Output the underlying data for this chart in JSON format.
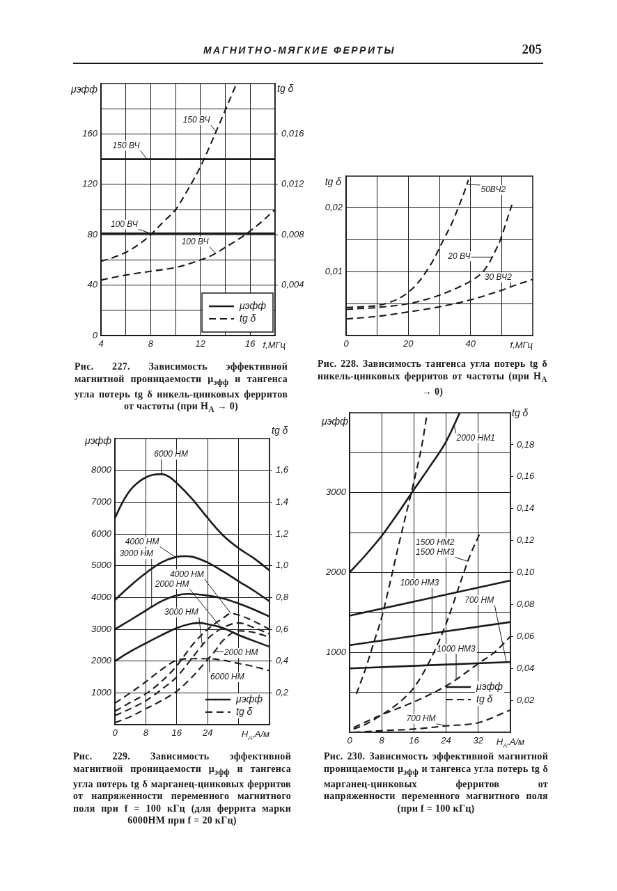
{
  "chart_data": [
    {
      "type": "line",
      "title": "Рис. 227. Зависимость эффективной магнитной проницаемости μ$_{эфф}$ и тангенса угла потерь tg δ никель-цинковых ферритов от частоты (при H$_{A}$ → 0)",
      "xlabel": "f,МГц",
      "ylabel": "μэфф",
      "y2label": "tg δ",
      "xlim": [
        4,
        18
      ],
      "xticks": [
        4,
        {
          "value": 6,
          "label": null
        },
        8,
        {
          "value": 10,
          "label": null
        },
        12,
        {
          "value": 14,
          "label": null
        },
        16
      ],
      "ylim": [
        0,
        200
      ],
      "yticks": [
        0,
        {
          "value": 20,
          "label": null
        },
        40,
        {
          "value": 60,
          "label": null
        },
        80,
        {
          "value": 100,
          "label": null
        },
        120,
        160,
        {
          "value": 180,
          "label": null
        }
      ],
      "y2lim": [
        0,
        0.02
      ],
      "y2ticks": [
        {
          "value": 0.004,
          "label": "0,004"
        },
        {
          "value": 0.008,
          "label": "0,008"
        },
        {
          "value": 0.012,
          "label": "0,012"
        },
        {
          "value": 0.016,
          "label": "0,016"
        }
      ],
      "grid": true,
      "legend": "bottom right",
      "marker": "none",
      "series": [
        {
          "name": "μэфф",
          "color": "#1a1a1a",
          "line_style": "solid",
          "x": [
            4,
            18
          ],
          "values": [
            140,
            140
          ]
        },
        {
          "color": "#1a1a1a",
          "line_style": "solid",
          "x": [
            4,
            18
          ],
          "values": [
            81,
            81
          ]
        },
        {
          "name": "tg δ",
          "color": "#1a1a1a",
          "line_style": "dashed",
          "axis": "y2",
          "x": [
            4,
            5,
            6,
            7,
            8,
            9,
            10,
            11,
            12,
            13,
            14,
            14.9
          ],
          "values": [
            0.0059,
            0.0062,
            0.0066,
            0.0072,
            0.008,
            0.009,
            0.01,
            0.0116,
            0.0134,
            0.0156,
            0.0179,
            0.02
          ]
        },
        {
          "color": "#1a1a1a",
          "line_style": "dashed",
          "axis": "y2",
          "x": [
            4,
            6,
            8,
            10,
            12,
            13,
            14,
            15,
            16,
            17,
            18
          ],
          "values": [
            0.0044,
            0.0048,
            0.0051,
            0.0054,
            0.006,
            0.0064,
            0.007,
            0.0076,
            0.0083,
            0.0091,
            0.01
          ]
        }
      ],
      "annotations": [
        "МАГНИТНО-МЯГКИЕ ФЕРРИТЫ",
        "205",
        {
          "text": "150 ВЧ",
          "x": 7.7,
          "y": 140
        },
        {
          "text": "150 ВЧ",
          "x": 13.25,
          "y": 162
        },
        {
          "text": "100 ВЧ",
          "x": 8,
          "y": 81
        },
        {
          "text": "100 ВЧ",
          "x": 13.25,
          "y": 65
        }
      ]
    },
    {
      "type": "line",
      "title": "Рис. 228. Зависимость тангенса угла потерь tg δ никель-цинковых ферритов от частоты (при H$_{A}$ → 0)",
      "xlabel": "f,МГц",
      "ylabel": "tg δ",
      "xlim": [
        0,
        60
      ],
      "xticks": [
        0,
        {
          "value": 10,
          "label": null
        },
        20,
        {
          "value": 30,
          "label": null
        },
        40,
        {
          "value": 50,
          "label": null
        }
      ],
      "ylim": [
        0,
        0.025
      ],
      "yticks": [
        {
          "value": 0.005,
          "label": null
        },
        {
          "value": 0.01,
          "label": "0,01"
        },
        {
          "value": 0.015,
          "label": null
        },
        {
          "value": 0.02,
          "label": "0,02"
        }
      ],
      "grid": true,
      "marker": "none",
      "line_style": "dashed",
      "series": [
        {
          "color": "#1a1a1a",
          "x": [
            0,
            5,
            10,
            14,
            18,
            21,
            24,
            25.7,
            28,
            31.3,
            34,
            36,
            38,
            39.3
          ],
          "values": [
            0.0044,
            0.0045,
            0.0047,
            0.0052,
            0.0061,
            0.0072,
            0.0088,
            0.01,
            0.0118,
            0.015,
            0.0176,
            0.02,
            0.0225,
            0.0244
          ]
        },
        {
          "color": "#1a1a1a",
          "x": [
            0,
            10,
            20,
            28,
            34,
            38,
            41,
            44,
            46,
            48,
            49.6,
            51.5,
            53.3
          ],
          "values": [
            0.0041,
            0.0044,
            0.005,
            0.006,
            0.0071,
            0.008,
            0.0088,
            0.01,
            0.0114,
            0.0133,
            0.015,
            0.0178,
            0.0205
          ]
        },
        {
          "color": "#1a1a1a",
          "x": [
            0,
            10,
            20,
            30,
            40,
            50,
            55,
            60
          ],
          "values": [
            0.0026,
            0.003,
            0.0037,
            0.0045,
            0.0056,
            0.0071,
            0.008,
            0.0088
          ]
        }
      ],
      "annotations": [
        {
          "text": "50ВЧ2",
          "x": 38.8,
          "y": 0.0237
        },
        {
          "text": "20 ВЧ",
          "x": 46.9,
          "y": 0.0123
        },
        {
          "text": "30 ВЧ2",
          "x": 52.9,
          "y": 0.0076
        }
      ]
    },
    {
      "type": "line",
      "title": "Рис. 229. Зависимость эффективной магнитной проницаемости μ$_{эфф}$ и тангенса угла потерь tg δ марганец-цинковых ферритов от напряженности переменного магнитного поля при f = 100 кГц (для феррита марки 6000НМ при f = 20 кГц)",
      "xlabel": "H$_{A}$,А/м",
      "ylabel": "μэфф",
      "y2label": "tg δ",
      "xlim": [
        0,
        40
      ],
      "xticks": [
        0,
        8,
        16,
        24,
        {
          "value": 32,
          "label": null
        }
      ],
      "ylim": [
        0,
        9000
      ],
      "yticks": [
        1000,
        2000,
        3000,
        4000,
        5000,
        6000,
        7000,
        8000
      ],
      "y2lim": [
        0,
        1.8
      ],
      "y2ticks": [
        {
          "value": 0.2,
          "label": "0,2"
        },
        {
          "value": 0.4,
          "label": "0,4"
        },
        {
          "value": 0.6,
          "label": "0,6"
        },
        {
          "value": 0.8,
          "label": "0,8"
        },
        {
          "value": 1.0,
          "label": "1,0"
        },
        {
          "value": 1.2,
          "label": "1,2"
        },
        {
          "value": 1.4,
          "label": "1,4"
        },
        {
          "value": 1.6,
          "label": "1,6"
        }
      ],
      "grid": true,
      "legend": "bottom right",
      "marker": "none",
      "series": [
        {
          "name": "μэфф",
          "color": "#1a1a1a",
          "line_style": "solid",
          "x": [
            0,
            2,
            4,
            6,
            8,
            10,
            12,
            14,
            16,
            20,
            24,
            28,
            32,
            36,
            40
          ],
          "values": [
            6500,
            7000,
            7380,
            7620,
            7780,
            7860,
            7880,
            7800,
            7600,
            7100,
            6500,
            5950,
            5550,
            5230,
            4850
          ]
        },
        {
          "color": "#1a1a1a",
          "line_style": "solid",
          "x": [
            0,
            4,
            8,
            12,
            16,
            18,
            20,
            24,
            28,
            32,
            36,
            40
          ],
          "values": [
            3920,
            4370,
            4770,
            5100,
            5280,
            5300,
            5280,
            5100,
            4820,
            4510,
            4210,
            3880
          ]
        },
        {
          "color": "#1a1a1a",
          "line_style": "solid",
          "x": [
            0,
            4,
            8,
            12,
            16,
            19,
            24,
            28,
            32,
            36,
            40
          ],
          "values": [
            3000,
            3290,
            3590,
            3880,
            4070,
            4110,
            4060,
            3970,
            3810,
            3620,
            3400
          ]
        },
        {
          "color": "#1a1a1a",
          "line_style": "solid",
          "x": [
            0,
            4,
            8,
            12,
            16,
            20,
            22,
            24,
            28,
            32,
            36,
            40
          ],
          "values": [
            2000,
            2300,
            2560,
            2810,
            3040,
            3180,
            3200,
            3160,
            3040,
            2820,
            2630,
            2450
          ]
        },
        {
          "name": "tg δ",
          "color": "#1a1a1a",
          "line_style": "dashed",
          "axis": "y2",
          "x": [
            0,
            4,
            8,
            12,
            16,
            20,
            24,
            28,
            32,
            36,
            40
          ],
          "values": [
            0.135,
            0.2,
            0.27,
            0.345,
            0.405,
            0.415,
            0.415,
            0.405,
            0.385,
            0.365,
            0.34
          ]
        },
        {
          "color": "#1a1a1a",
          "line_style": "dashed",
          "axis": "y2",
          "x": [
            0,
            4,
            8,
            12,
            16,
            20,
            24,
            28,
            30,
            32,
            36,
            40
          ],
          "values": [
            0.084,
            0.14,
            0.194,
            0.27,
            0.37,
            0.5,
            0.6,
            0.67,
            0.7,
            0.69,
            0.65,
            0.6
          ]
        },
        {
          "color": "#1a1a1a",
          "line_style": "dashed",
          "axis": "y2",
          "x": [
            0,
            4,
            8,
            12,
            16,
            20,
            22.6,
            24,
            28,
            32,
            36,
            40
          ],
          "values": [
            0.057,
            0.1,
            0.15,
            0.22,
            0.3,
            0.42,
            0.5,
            0.54,
            0.61,
            0.64,
            0.61,
            0.57
          ]
        },
        {
          "color": "#1a1a1a",
          "line_style": "dashed",
          "axis": "y2",
          "x": [
            0,
            4,
            8,
            12,
            16,
            20,
            24,
            25.8,
            28,
            32,
            36,
            40
          ],
          "values": [
            0.012,
            0.05,
            0.1,
            0.15,
            0.21,
            0.3,
            0.41,
            0.46,
            0.53,
            0.59,
            0.58,
            0.55
          ]
        }
      ],
      "annotations": [
        {
          "text": "6000 НМ",
          "x": 12,
          "y": 7880
        },
        {
          "text": "4000 НМ",
          "x": 30,
          "y": 3500
        },
        {
          "text": "4000 НМ",
          "x": 15.7,
          "y": 5270
        },
        {
          "text": "3000 НМ",
          "x": 22.6,
          "y": 2500
        },
        {
          "text": "3000 НМ",
          "x": 9.5,
          "y": 3700
        },
        {
          "text": "2000 НМ",
          "x": 25.8,
          "y": 2300
        },
        {
          "text": "2000 НМ",
          "x": 27.4,
          "y": 3060
        },
        {
          "text": "6000 НМ",
          "x": 24.4,
          "y": 2080
        }
      ]
    },
    {
      "type": "line",
      "title": "Рис. 230. Зависимость эффективной магнитной проницаемости μ$_{эфф}$ и тангенса угла потерь tg δ марганец-цинковых ферритов от напряженности переменного магнитного поля (при f = 100 кГц)",
      "xlabel": "H$_{A}$,А/м",
      "ylabel": "μэфф",
      "y2label": "tg δ",
      "xlim": [
        0,
        40
      ],
      "xticks": [
        0,
        8,
        16,
        24,
        32
      ],
      "ylim": [
        0,
        4000
      ],
      "yticks": [
        {
          "value": 500,
          "label": null
        },
        1000,
        {
          "value": 1500,
          "label": null
        },
        2000,
        {
          "value": 2500,
          "label": null
        },
        3000,
        {
          "value": 3500,
          "label": null
        }
      ],
      "y2lim": [
        0,
        0.2
      ],
      "y2ticks": [
        {
          "value": 0.02,
          "label": "0,02"
        },
        {
          "value": 0.04,
          "label": "0,04"
        },
        {
          "value": 0.06,
          "label": "0,06"
        },
        {
          "value": 0.08,
          "label": "0,08"
        },
        {
          "value": 0.1,
          "label": "0,10"
        },
        {
          "value": 0.12,
          "label": "0,12"
        },
        {
          "value": 0.14,
          "label": "0,14"
        },
        {
          "value": 0.16,
          "label": "0,16"
        },
        {
          "value": 0.18,
          "label": "0,18"
        }
      ],
      "grid": true,
      "legend": "bottom right",
      "marker": "none",
      "series": [
        {
          "name": "μэфф",
          "color": "#1a1a1a",
          "line_style": "solid",
          "x": [
            0,
            4,
            8,
            12,
            16,
            20,
            24,
            27.4
          ],
          "values": [
            2000,
            2220,
            2460,
            2740,
            3040,
            3330,
            3640,
            4000
          ]
        },
        {
          "color": "#1a1a1a",
          "line_style": "solid",
          "x": [
            0,
            40
          ],
          "values": [
            1460,
            1900
          ]
        },
        {
          "color": "#1a1a1a",
          "line_style": "solid",
          "x": [
            0,
            40
          ],
          "values": [
            1090,
            1380
          ]
        },
        {
          "color": "#1a1a1a",
          "line_style": "solid",
          "x": [
            0,
            40
          ],
          "values": [
            800,
            880
          ]
        },
        {
          "name": "tg δ",
          "color": "#1a1a1a",
          "line_style": "dashed",
          "axis": "y2",
          "x": [
            1.7,
            4,
            6,
            8,
            10,
            12,
            14,
            16,
            18,
            19.3
          ],
          "values": [
            0.024,
            0.04,
            0.056,
            0.072,
            0.093,
            0.115,
            0.136,
            0.157,
            0.18,
            0.2
          ]
        },
        {
          "color": "#1a1a1a",
          "line_style": "dashed",
          "axis": "y2",
          "x": [
            1,
            4,
            8,
            12,
            16,
            20,
            24,
            28,
            30,
            32.3
          ],
          "values": [
            0.002,
            0.005,
            0.011,
            0.018,
            0.028,
            0.045,
            0.068,
            0.097,
            0.111,
            0.124
          ]
        },
        {
          "color": "#1a1a1a",
          "line_style": "dashed",
          "axis": "y2",
          "x": [
            1,
            8,
            16,
            24,
            26.5,
            32,
            36,
            40
          ],
          "values": [
            0.003,
            0.011,
            0.019,
            0.029,
            0.033,
            0.043,
            0.05,
            0.06
          ]
        },
        {
          "color": "#1a1a1a",
          "line_style": "dashed",
          "axis": "y2",
          "x": [
            1,
            8,
            16,
            24,
            32,
            40
          ],
          "values": [
            0,
            0.001,
            0.002,
            0.004,
            0.006,
            0.014
          ]
        }
      ],
      "annotations": [
        {
          "text": "2000 НМ1",
          "x": 26,
          "y": 3850
        },
        {
          "text": "1500 НМ2\n1500 НМ3",
          "x": 29.4,
          "y": 2140
        },
        {
          "text": "1000 НМ3",
          "x": 26.5,
          "y": 660
        },
        {
          "text": "1000 НМ3",
          "x": 20.5,
          "y": 1240
        },
        {
          "text": "700 НМ",
          "x": 39,
          "y": 878
        },
        {
          "text": "700 НМ",
          "x": 24,
          "y": 80
        }
      ]
    }
  ]
}
